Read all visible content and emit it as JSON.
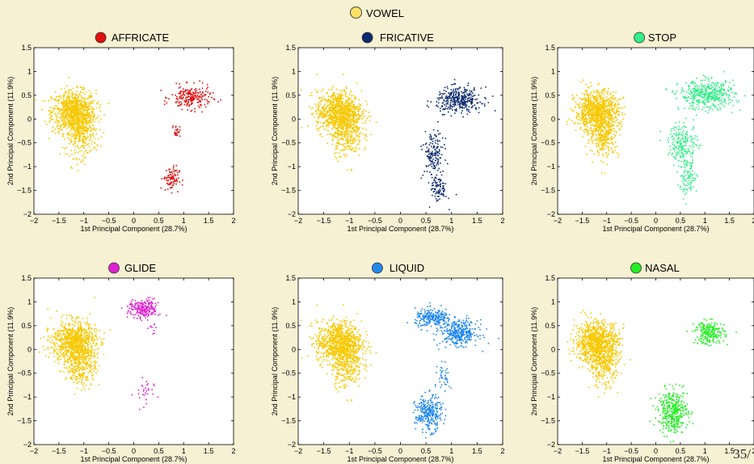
{
  "top_legend": {
    "label": "VOWEL",
    "color": "#ffe066"
  },
  "page_number": "35/",
  "chart_data": [
    {
      "type": "scatter",
      "title": "AFFRICATE",
      "marker_color": "#e01010",
      "xlabel": "1st Principal Component (28.7%)",
      "ylabel": "2nd Principal Component (11.9%)",
      "xlim": [
        -2,
        2
      ],
      "ylim": [
        -2,
        1.5
      ],
      "xticks": [
        "−2",
        "−1.5",
        "−1",
        "−0.5",
        "0",
        "0.5",
        "1",
        "1.5",
        "2"
      ],
      "yticks": [
        "−2",
        "−1.5",
        "−1",
        "−0.5",
        "0",
        "0.5",
        "1",
        "1.5"
      ],
      "series": [
        {
          "name": "VOWEL",
          "color": "#f7c800",
          "clusters": [
            {
              "x": -1.2,
              "y": 0.15,
              "sx": 0.22,
              "sy": 0.22,
              "n": 900
            },
            {
              "x": -1.05,
              "y": -0.3,
              "sx": 0.15,
              "sy": 0.25,
              "n": 300
            }
          ]
        },
        {
          "name": "AFFRICATE",
          "color": "#e01010",
          "clusters": [
            {
              "x": 1.15,
              "y": 0.45,
              "sx": 0.2,
              "sy": 0.12,
              "n": 220
            },
            {
              "x": 0.85,
              "y": -0.25,
              "sx": 0.04,
              "sy": 0.06,
              "n": 25
            },
            {
              "x": 0.75,
              "y": -1.25,
              "sx": 0.08,
              "sy": 0.13,
              "n": 90
            }
          ]
        }
      ]
    },
    {
      "type": "scatter",
      "title": "FRICATIVE",
      "marker_color": "#0d2a6e",
      "xlabel": "1st Principal Component (28.7%)",
      "ylabel": "2nd Principal Component (11.9%)",
      "xlim": [
        -2,
        2
      ],
      "ylim": [
        -2,
        1.5
      ],
      "xticks": [
        "−2",
        "−1.5",
        "−1",
        "−0.5",
        "0",
        "0.5",
        "1",
        "1.5",
        "2"
      ],
      "yticks": [
        "−2",
        "−1.5",
        "−1",
        "−0.5",
        "0",
        "0.5",
        "1",
        "1.5"
      ],
      "series": [
        {
          "name": "VOWEL",
          "color": "#f7c800",
          "clusters": [
            {
              "x": -1.2,
              "y": 0.15,
              "sx": 0.22,
              "sy": 0.22,
              "n": 900
            },
            {
              "x": -1.05,
              "y": -0.3,
              "sx": 0.15,
              "sy": 0.25,
              "n": 300
            }
          ]
        },
        {
          "name": "FRICATIVE",
          "color": "#0d2a6e",
          "clusters": [
            {
              "x": 1.15,
              "y": 0.4,
              "sx": 0.22,
              "sy": 0.13,
              "n": 350
            },
            {
              "x": 0.65,
              "y": -0.75,
              "sx": 0.1,
              "sy": 0.25,
              "n": 150
            },
            {
              "x": 0.75,
              "y": -1.45,
              "sx": 0.08,
              "sy": 0.15,
              "n": 90
            }
          ]
        }
      ]
    },
    {
      "type": "scatter",
      "title": "STOP",
      "marker_color": "#33ee88",
      "xlabel": "1st Principal Component (28.7%)",
      "ylabel": "2nd Principal Component (11.9%)",
      "xlim": [
        -2,
        2
      ],
      "ylim": [
        -2,
        1.5
      ],
      "xticks": [
        "−2",
        "−1.5",
        "−1",
        "−0.5",
        "0",
        "0.5",
        "1",
        "1.5",
        "2"
      ],
      "yticks": [
        "−2",
        "−1.5",
        "−1",
        "−0.5",
        "0",
        "0.5",
        "1",
        "1.5"
      ],
      "series": [
        {
          "name": "VOWEL",
          "color": "#f7c800",
          "clusters": [
            {
              "x": -1.2,
              "y": 0.15,
              "sx": 0.22,
              "sy": 0.22,
              "n": 900
            },
            {
              "x": -1.05,
              "y": -0.3,
              "sx": 0.15,
              "sy": 0.25,
              "n": 300
            }
          ]
        },
        {
          "name": "STOP",
          "color": "#33ee88",
          "clusters": [
            {
              "x": 1.05,
              "y": 0.5,
              "sx": 0.28,
              "sy": 0.15,
              "n": 450
            },
            {
              "x": 0.55,
              "y": -0.5,
              "sx": 0.15,
              "sy": 0.2,
              "n": 200
            },
            {
              "x": 0.65,
              "y": -1.2,
              "sx": 0.1,
              "sy": 0.2,
              "n": 110
            }
          ]
        }
      ]
    },
    {
      "type": "scatter",
      "title": "GLIDE",
      "marker_color": "#e020d0",
      "xlabel": "1st Principal Component (28.7%)",
      "ylabel": "2nd Principal Component (11.9%)",
      "xlim": [
        -2,
        2
      ],
      "ylim": [
        -2,
        1.5
      ],
      "xticks": [
        "−2",
        "−1.5",
        "−1",
        "−0.5",
        "0",
        "0.5",
        "1",
        "1.5",
        "2"
      ],
      "yticks": [
        "−2",
        "−1.5",
        "−1",
        "−0.5",
        "0",
        "0.5",
        "1",
        "1.5"
      ],
      "series": [
        {
          "name": "VOWEL",
          "color": "#f7c800",
          "clusters": [
            {
              "x": -1.2,
              "y": 0.15,
              "sx": 0.22,
              "sy": 0.22,
              "n": 900
            },
            {
              "x": -1.05,
              "y": -0.3,
              "sx": 0.15,
              "sy": 0.25,
              "n": 300
            }
          ]
        },
        {
          "name": "GLIDE",
          "color": "#e020d0",
          "clusters": [
            {
              "x": 0.2,
              "y": 0.85,
              "sx": 0.15,
              "sy": 0.1,
              "n": 220
            },
            {
              "x": 0.4,
              "y": 0.45,
              "sx": 0.05,
              "sy": 0.1,
              "n": 10
            },
            {
              "x": 0.2,
              "y": -0.95,
              "sx": 0.1,
              "sy": 0.18,
              "n": 30
            }
          ]
        }
      ]
    },
    {
      "type": "scatter",
      "title": "LIQUID",
      "marker_color": "#2288ee",
      "xlabel": "1st Principal Component (28.7%)",
      "ylabel": "2nd Principal Component (11.9%)",
      "xlim": [
        -2,
        2
      ],
      "ylim": [
        -2,
        1.5
      ],
      "xticks": [
        "−2",
        "−1.5",
        "−1",
        "−0.5",
        "0",
        "0.5",
        "1",
        "1.5",
        "2"
      ],
      "yticks": [
        "−2",
        "−1.5",
        "−1",
        "−0.5",
        "0",
        "0.5",
        "1",
        "1.5"
      ],
      "series": [
        {
          "name": "VOWEL",
          "color": "#f7c800",
          "clusters": [
            {
              "x": -1.2,
              "y": 0.15,
              "sx": 0.22,
              "sy": 0.22,
              "n": 900
            },
            {
              "x": -1.05,
              "y": -0.3,
              "sx": 0.15,
              "sy": 0.25,
              "n": 300
            }
          ]
        },
        {
          "name": "LIQUID",
          "color": "#2288ee",
          "clusters": [
            {
              "x": 0.65,
              "y": 0.65,
              "sx": 0.18,
              "sy": 0.1,
              "n": 250
            },
            {
              "x": 1.15,
              "y": 0.35,
              "sx": 0.18,
              "sy": 0.13,
              "n": 350
            },
            {
              "x": 0.85,
              "y": -0.6,
              "sx": 0.06,
              "sy": 0.15,
              "n": 40
            },
            {
              "x": 0.55,
              "y": -1.35,
              "sx": 0.13,
              "sy": 0.18,
              "n": 300
            }
          ]
        }
      ]
    },
    {
      "type": "scatter",
      "title": "NASAL",
      "marker_color": "#22ee22",
      "xlabel": "1st Principal Component (28.7%)",
      "ylabel": "2nd Principal Component (11.9%)",
      "xlim": [
        -2,
        2
      ],
      "ylim": [
        -2,
        1.5
      ],
      "xticks": [
        "−2",
        "−1.5",
        "−1",
        "−0.5",
        "0",
        "0.5",
        "1",
        "1.5",
        "2"
      ],
      "yticks": [
        "−2",
        "−1.5",
        "−1",
        "−0.5",
        "0",
        "0.5",
        "1",
        "1.5"
      ],
      "series": [
        {
          "name": "VOWEL",
          "color": "#f7c800",
          "clusters": [
            {
              "x": -1.2,
              "y": 0.15,
              "sx": 0.22,
              "sy": 0.22,
              "n": 900
            },
            {
              "x": -1.05,
              "y": -0.3,
              "sx": 0.15,
              "sy": 0.25,
              "n": 300
            }
          ]
        },
        {
          "name": "NASAL",
          "color": "#22ee22",
          "clusters": [
            {
              "x": 1.1,
              "y": 0.35,
              "sx": 0.15,
              "sy": 0.12,
              "n": 220
            },
            {
              "x": 0.35,
              "y": -1.3,
              "sx": 0.15,
              "sy": 0.22,
              "n": 380
            }
          ]
        }
      ]
    }
  ]
}
